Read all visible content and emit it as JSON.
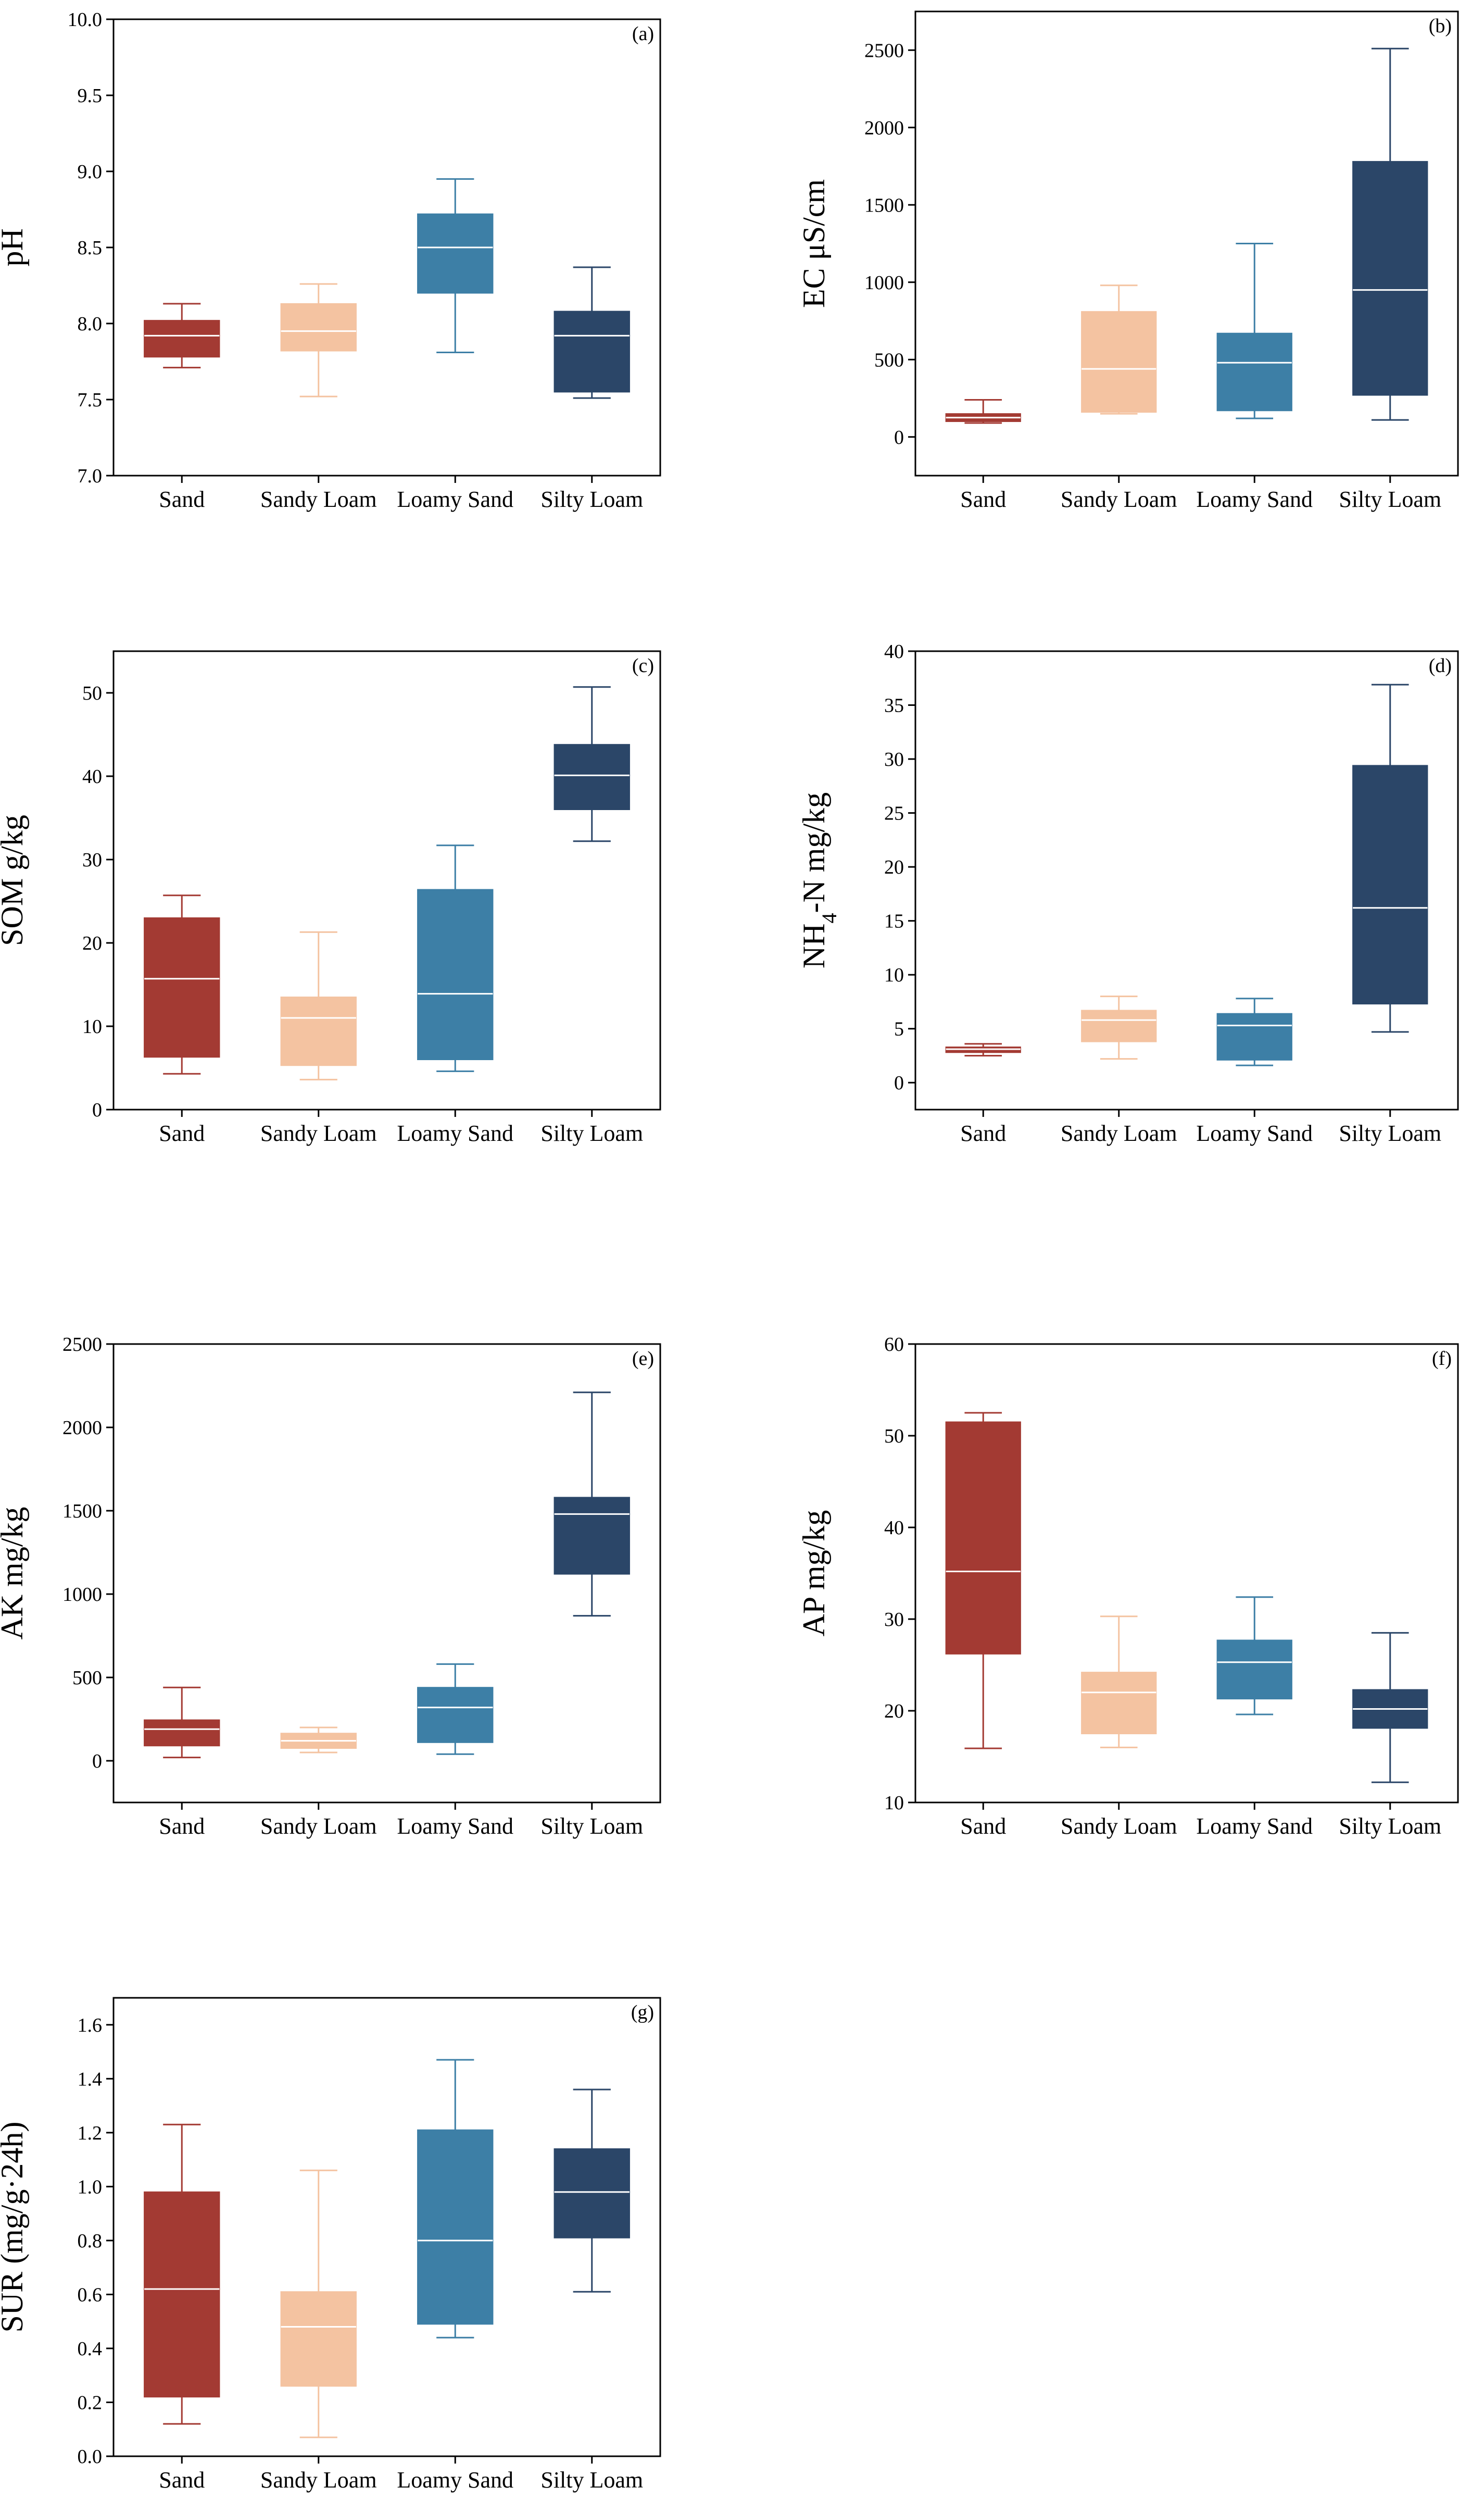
{
  "chart_data": [
    {
      "type": "box",
      "panel_label": "(a)",
      "ylabel": "pH",
      "categories": [
        "Sand",
        "Sandy Loam",
        "Loamy Sand",
        "Silty Loam"
      ],
      "ylim": [
        7.0,
        10.0
      ],
      "yticks": [
        "7.0",
        "7.5",
        "8.0",
        "8.5",
        "9.0",
        "9.5",
        "10.0"
      ],
      "boxes": [
        {
          "min": 7.71,
          "q1": 7.78,
          "median": 7.92,
          "q3": 8.02,
          "max": 8.13
        },
        {
          "min": 7.52,
          "q1": 7.82,
          "median": 7.95,
          "q3": 8.13,
          "max": 8.26
        },
        {
          "min": 7.81,
          "q1": 8.2,
          "median": 8.5,
          "q3": 8.72,
          "max": 8.95
        },
        {
          "min": 7.51,
          "q1": 7.55,
          "median": 7.92,
          "q3": 8.08,
          "max": 8.37
        }
      ]
    },
    {
      "type": "box",
      "panel_label": "(b)",
      "ylabel": "EC μS/cm",
      "categories": [
        "Sand",
        "Sandy Loam",
        "Loamy Sand",
        "Silty Loam"
      ],
      "ylim": [
        -250,
        2750
      ],
      "yticks": [
        "0",
        "500",
        "1000",
        "1500",
        "2000",
        "2500"
      ],
      "boxes": [
        {
          "min": 90,
          "q1": 100,
          "median": 125,
          "q3": 150,
          "max": 240
        },
        {
          "min": 150,
          "q1": 160,
          "median": 440,
          "q3": 810,
          "max": 980
        },
        {
          "min": 120,
          "q1": 170,
          "median": 480,
          "q3": 670,
          "max": 1250
        },
        {
          "min": 110,
          "q1": 270,
          "median": 950,
          "q3": 1780,
          "max": 2510
        }
      ]
    },
    {
      "type": "box",
      "panel_label": "(c)",
      "ylabel": "SOM g/kg",
      "categories": [
        "Sand",
        "Sandy Loam",
        "Loamy Sand",
        "Silty Loam"
      ],
      "ylim": [
        0,
        55
      ],
      "yticks": [
        "0",
        "10",
        "20",
        "30",
        "40",
        "50"
      ],
      "boxes": [
        {
          "min": 4.3,
          "q1": 6.3,
          "median": 15.7,
          "q3": 23.0,
          "max": 25.7
        },
        {
          "min": 3.6,
          "q1": 5.3,
          "median": 11.0,
          "q3": 13.5,
          "max": 21.3
        },
        {
          "min": 4.6,
          "q1": 6.0,
          "median": 13.9,
          "q3": 26.4,
          "max": 31.7
        },
        {
          "min": 32.2,
          "q1": 36.0,
          "median": 40.1,
          "q3": 43.8,
          "max": 50.7
        }
      ]
    },
    {
      "type": "box",
      "panel_label": "(d)",
      "ylabel_main": "NH",
      "ylabel_sub": "4",
      "ylabel_rest": "-N mg/kg",
      "categories": [
        "Sand",
        "Sandy Loam",
        "Loamy Sand",
        "Silty Loam"
      ],
      "ylim": [
        -2.5,
        40
      ],
      "yticks": [
        "0",
        "5",
        "10",
        "15",
        "20",
        "25",
        "30",
        "35",
        "40"
      ],
      "boxes": [
        {
          "min": 2.5,
          "q1": 2.8,
          "median": 3.1,
          "q3": 3.3,
          "max": 3.6
        },
        {
          "min": 2.2,
          "q1": 3.8,
          "median": 5.8,
          "q3": 6.7,
          "max": 8.0
        },
        {
          "min": 1.6,
          "q1": 2.1,
          "median": 5.3,
          "q3": 6.4,
          "max": 7.8
        },
        {
          "min": 4.7,
          "q1": 7.3,
          "median": 16.2,
          "q3": 29.4,
          "max": 36.9
        }
      ]
    },
    {
      "type": "box",
      "panel_label": "(e)",
      "ylabel": "AK mg/kg",
      "categories": [
        "Sand",
        "Sandy Loam",
        "Loamy Sand",
        "Silty Loam"
      ],
      "ylim": [
        -250,
        2500
      ],
      "yticks": [
        "0",
        "500",
        "1000",
        "1500",
        "2000",
        "2500"
      ],
      "boxes": [
        {
          "min": 20,
          "q1": 90,
          "median": 190,
          "q3": 245,
          "max": 440
        },
        {
          "min": 50,
          "q1": 75,
          "median": 120,
          "q3": 165,
          "max": 200
        },
        {
          "min": 40,
          "q1": 110,
          "median": 320,
          "q3": 440,
          "max": 580
        },
        {
          "min": 870,
          "q1": 1120,
          "median": 1480,
          "q3": 1580,
          "max": 2210
        }
      ]
    },
    {
      "type": "box",
      "panel_label": "(f)",
      "ylabel": "AP mg/kg",
      "categories": [
        "Sand",
        "Sandy Loam",
        "Loamy Sand",
        "Silty Loam"
      ],
      "ylim": [
        10,
        60
      ],
      "yticks": [
        "10",
        "20",
        "30",
        "40",
        "50",
        "60"
      ],
      "boxes": [
        {
          "min": 15.9,
          "q1": 26.2,
          "median": 35.2,
          "q3": 51.5,
          "max": 52.5
        },
        {
          "min": 16.0,
          "q1": 17.5,
          "median": 22.0,
          "q3": 24.2,
          "max": 30.3
        },
        {
          "min": 19.6,
          "q1": 21.3,
          "median": 25.3,
          "q3": 27.7,
          "max": 32.4
        },
        {
          "min": 12.2,
          "q1": 18.1,
          "median": 20.2,
          "q3": 22.3,
          "max": 28.5
        }
      ]
    },
    {
      "type": "box",
      "panel_label": "(g)",
      "ylabel": "SUR (mg/g·24h)",
      "categories": [
        "Sand",
        "Sandy Loam",
        "Loamy Sand",
        "Silty Loam"
      ],
      "ylim": [
        0.0,
        1.7
      ],
      "yticks": [
        "0.0",
        "0.2",
        "0.4",
        "0.6",
        "0.8",
        "1.0",
        "1.2",
        "1.4",
        "1.6"
      ],
      "boxes": [
        {
          "min": 0.12,
          "q1": 0.22,
          "median": 0.62,
          "q3": 0.98,
          "max": 1.23
        },
        {
          "min": 0.07,
          "q1": 0.26,
          "median": 0.48,
          "q3": 0.61,
          "max": 1.06
        },
        {
          "min": 0.44,
          "q1": 0.49,
          "median": 0.8,
          "q3": 1.21,
          "max": 1.47
        },
        {
          "min": 0.61,
          "q1": 0.81,
          "median": 0.98,
          "q3": 1.14,
          "max": 1.36
        }
      ]
    }
  ],
  "series_colors": {
    "box_fill": [
      "#a33a33",
      "#f4c3a1",
      "#3d7fa6",
      "#2b4668"
    ],
    "whisker": [
      "#a33a33",
      "#f4c3a1",
      "#3d7fa6",
      "#2b4668"
    ],
    "median_line": "#ffffff"
  }
}
